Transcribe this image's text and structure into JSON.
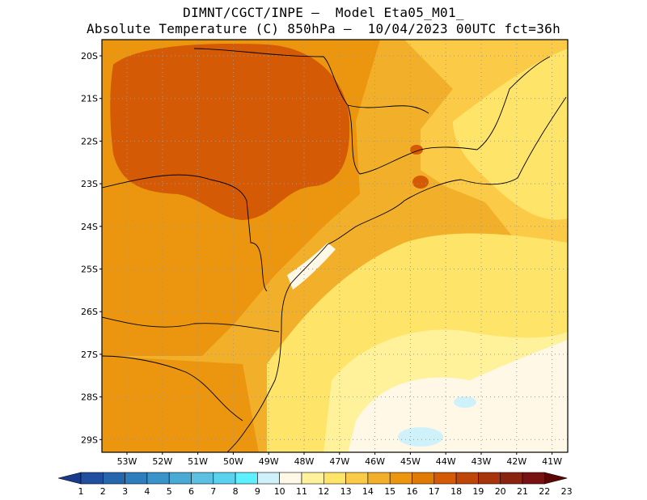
{
  "header": {
    "line1": "DIMNT/CGCT/INPE –  Model Eta05_M01_",
    "line2": "Absolute Temperature (C) 850hPa –  10/04/2023 00UTC fct=36h"
  },
  "map": {
    "lat_labels": [
      "20S",
      "21S",
      "22S",
      "23S",
      "24S",
      "25S",
      "26S",
      "27S",
      "28S",
      "29S"
    ],
    "lon_labels": [
      "53W",
      "52W",
      "51W",
      "50W",
      "49W",
      "48W",
      "47W",
      "46W",
      "45W",
      "44W",
      "43W",
      "42W",
      "41W"
    ],
    "grid": "dotted"
  },
  "colorbar": {
    "labels": [
      "1",
      "2",
      "3",
      "4",
      "5",
      "6",
      "7",
      "8",
      "9",
      "10",
      "11",
      "12",
      "13",
      "14",
      "15",
      "16",
      "17",
      "18",
      "19",
      "20",
      "21",
      "22",
      "23"
    ],
    "colors": [
      "#1a3a8c",
      "#1f4f9e",
      "#2666ad",
      "#2e7dbd",
      "#3a93c9",
      "#4aaad6",
      "#5cc0e2",
      "#58d2ee",
      "#5ff0ff",
      "#cff2fa",
      "#fff8e6",
      "#fff29a",
      "#ffe46a",
      "#fbcb47",
      "#f2b02a",
      "#eb960e",
      "#e07a04",
      "#d45a05",
      "#c04508",
      "#a8340b",
      "#8a240f",
      "#781212",
      "#5c0606"
    ]
  }
}
